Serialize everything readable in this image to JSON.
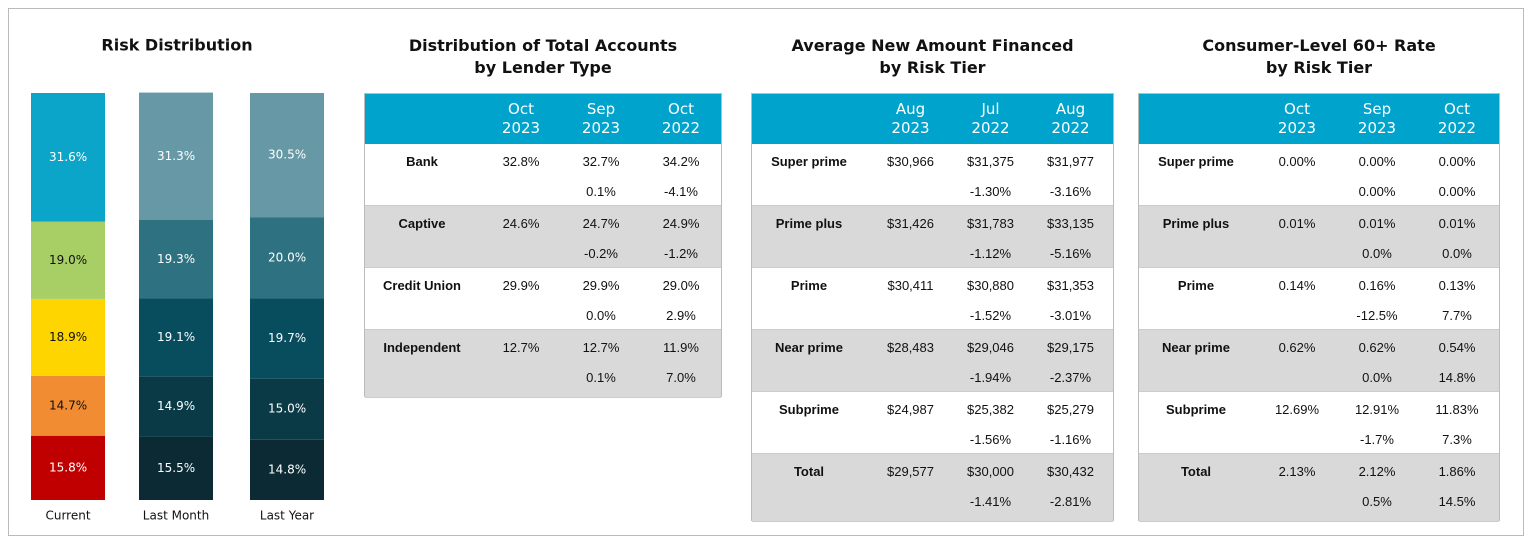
{
  "chart_data": {
    "type": "stacked_bar",
    "title": "Risk Distribution",
    "categories": [
      "Current",
      "Last Month",
      "Last Year"
    ],
    "ylim": [
      0,
      100
    ],
    "series": [
      {
        "colors": [
          "#c00000",
          "#0b2a33",
          "#0b2a33"
        ],
        "values": [
          15.8,
          15.5,
          14.8
        ],
        "value_labels": [
          "15.8%",
          "15.5%",
          "14.8%"
        ]
      },
      {
        "colors": [
          "#f28c33",
          "#0a3a45",
          "#0a3a45"
        ],
        "values": [
          14.7,
          14.9,
          15.0
        ],
        "value_labels": [
          "14.7%",
          "14.9%",
          "15.0%"
        ]
      },
      {
        "colors": [
          "#ffd500",
          "#084d5d",
          "#084d5d"
        ],
        "values": [
          18.9,
          19.1,
          19.7
        ],
        "value_labels": [
          "18.9%",
          "19.1%",
          "19.7%"
        ]
      },
      {
        "colors": [
          "#a7cf66",
          "#2e7281",
          "#2e7281"
        ],
        "values": [
          19.0,
          19.3,
          20.0
        ],
        "value_labels": [
          "19.0%",
          "19.3%",
          "20.0%"
        ]
      },
      {
        "colors": [
          "#0aa5c9",
          "#6699a5",
          "#6699a5"
        ],
        "values": [
          31.6,
          31.3,
          30.5
        ],
        "value_labels": [
          "31.6%",
          "31.3%",
          "30.5%"
        ]
      }
    ]
  },
  "tables": [
    {
      "title": [
        "Distribution of Total Accounts",
        "by Lender Type"
      ],
      "columns": [
        [
          "Oct",
          "2023"
        ],
        [
          "Sep",
          "2023"
        ],
        [
          "Oct",
          "2022"
        ]
      ],
      "rows": [
        {
          "label": "Bank",
          "values": [
            "32.8%",
            "32.7%",
            "34.2%"
          ],
          "changes": [
            "0.1%",
            "-4.1%"
          ]
        },
        {
          "label": "Captive",
          "values": [
            "24.6%",
            "24.7%",
            "24.9%"
          ],
          "changes": [
            "-0.2%",
            "-1.2%"
          ]
        },
        {
          "label": "Credit Union",
          "values": [
            "29.9%",
            "29.9%",
            "29.0%"
          ],
          "changes": [
            "0.0%",
            "2.9%"
          ]
        },
        {
          "label": "Independent",
          "values": [
            "12.7%",
            "12.7%",
            "11.9%"
          ],
          "changes": [
            "0.1%",
            "7.0%"
          ]
        }
      ]
    },
    {
      "title": [
        "Average New Amount Financed",
        "by Risk Tier"
      ],
      "columns": [
        [
          "Aug",
          "2023"
        ],
        [
          "Jul",
          "2022"
        ],
        [
          "Aug",
          "2022"
        ]
      ],
      "rows": [
        {
          "label": "Super prime",
          "values": [
            "$30,966",
            "$31,375",
            "$31,977"
          ],
          "changes": [
            "-1.30%",
            "-3.16%"
          ]
        },
        {
          "label": "Prime plus",
          "values": [
            "$31,426",
            "$31,783",
            "$33,135"
          ],
          "changes": [
            "-1.12%",
            "-5.16%"
          ]
        },
        {
          "label": "Prime",
          "values": [
            "$30,411",
            "$30,880",
            "$31,353"
          ],
          "changes": [
            "-1.52%",
            "-3.01%"
          ]
        },
        {
          "label": "Near prime",
          "values": [
            "$28,483",
            "$29,046",
            "$29,175"
          ],
          "changes": [
            "-1.94%",
            "-2.37%"
          ]
        },
        {
          "label": "Subprime",
          "values": [
            "$24,987",
            "$25,382",
            "$25,279"
          ],
          "changes": [
            "-1.56%",
            "-1.16%"
          ]
        },
        {
          "label": "Total",
          "values": [
            "$29,577",
            "$30,000",
            "$30,432"
          ],
          "changes": [
            "-1.41%",
            "-2.81%"
          ]
        }
      ]
    },
    {
      "title": [
        "Consumer-Level 60+ Rate",
        "by Risk Tier"
      ],
      "columns": [
        [
          "Oct",
          "2023"
        ],
        [
          "Sep",
          "2023"
        ],
        [
          "Oct",
          "2022"
        ]
      ],
      "rows": [
        {
          "label": "Super prime",
          "values": [
            "0.00%",
            "0.00%",
            "0.00%"
          ],
          "changes": [
            "0.00%",
            "0.00%"
          ]
        },
        {
          "label": "Prime plus",
          "values": [
            "0.01%",
            "0.01%",
            "0.01%"
          ],
          "changes": [
            "0.0%",
            "0.0%"
          ]
        },
        {
          "label": "Prime",
          "values": [
            "0.14%",
            "0.16%",
            "0.13%"
          ],
          "changes": [
            "-12.5%",
            "7.7%"
          ]
        },
        {
          "label": "Near prime",
          "values": [
            "0.62%",
            "0.62%",
            "0.54%"
          ],
          "changes": [
            "0.0%",
            "14.8%"
          ]
        },
        {
          "label": "Subprime",
          "values": [
            "12.69%",
            "12.91%",
            "11.83%"
          ],
          "changes": [
            "-1.7%",
            "7.3%"
          ]
        },
        {
          "label": "Total",
          "values": [
            "2.13%",
            "2.12%",
            "1.86%"
          ],
          "changes": [
            "0.5%",
            "14.5%"
          ]
        }
      ]
    }
  ]
}
